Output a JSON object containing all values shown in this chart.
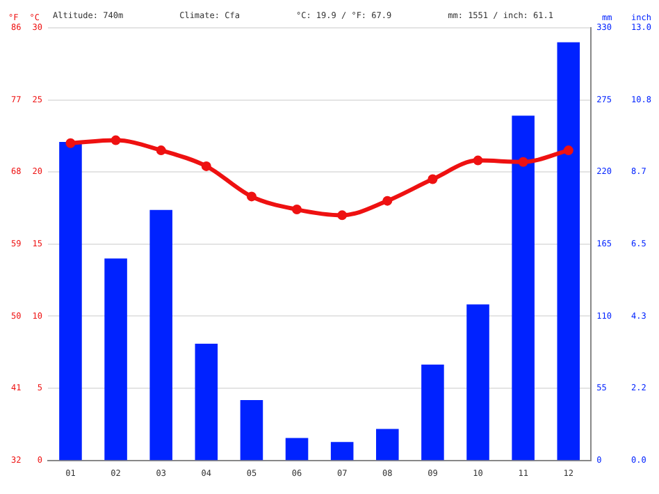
{
  "chart_data": {
    "type": "bar",
    "annotations": [
      "Altitude: 740m",
      "Climate: Cfa",
      "°C: 19.9 / °F: 67.9",
      "mm: 1551 / inch: 61.1",
      "inch",
      "0.0",
      "2.2",
      "4.3",
      "6.5",
      "8.7",
      "10.8",
      "13.0"
    ],
    "categories": [
      "01",
      "02",
      "03",
      "04",
      "05",
      "06",
      "07",
      "08",
      "09",
      "10",
      "11",
      "12"
    ],
    "series": [
      {
        "axis": "y2",
        "color": "#0022ff",
        "values": [
          243,
          154,
          191,
          89,
          46,
          17,
          14,
          24,
          73,
          119,
          263,
          319
        ]
      },
      {
        "type": "line",
        "axis": "y",
        "color": "#ee1111",
        "values": [
          22.0,
          22.2,
          21.5,
          20.4,
          18.3,
          17.4,
          17.0,
          18.0,
          19.5,
          20.8,
          20.7,
          21.5
        ]
      }
    ],
    "ylabel": "°C",
    "ylim": [
      0,
      30
    ],
    "yticks": [
      0,
      5,
      10,
      15,
      20,
      25,
      30
    ],
    "y3label": "°F",
    "y3lim": [
      32,
      86
    ],
    "y3ticks": [
      32,
      41,
      50,
      59,
      68,
      77,
      86
    ],
    "y2label": "mm",
    "y2lim": [
      0,
      330
    ],
    "y2ticks": [
      0,
      55,
      110,
      165,
      220,
      275,
      330
    ],
    "grid": "y",
    "legend": false,
    "marker": "circle",
    "line_style": "solid"
  }
}
